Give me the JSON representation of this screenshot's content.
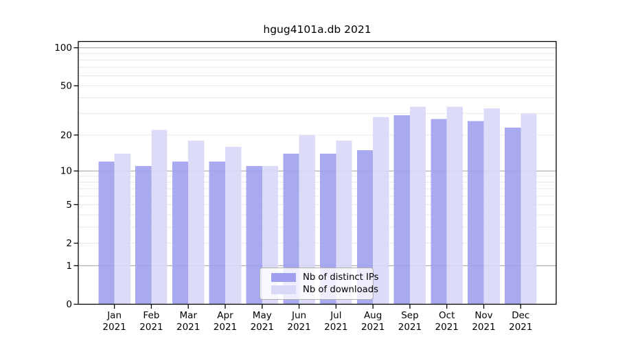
{
  "chart_data": {
    "type": "bar",
    "title": "hgug4101a.db 2021",
    "categories": [
      "Jan",
      "Feb",
      "Mar",
      "Apr",
      "May",
      "Jun",
      "Jul",
      "Aug",
      "Sep",
      "Oct",
      "Nov",
      "Dec"
    ],
    "category_year": "2021",
    "series": [
      {
        "name": "Nb of distinct IPs",
        "color": "#a0a0ee",
        "values": [
          12,
          11,
          12,
          12,
          11,
          14,
          14,
          15,
          29,
          27,
          26,
          23
        ]
      },
      {
        "name": "Nb of downloads",
        "color": "#d8d8f7",
        "values": [
          14,
          22,
          18,
          16,
          11,
          20,
          18,
          28,
          34,
          34,
          33,
          30
        ]
      }
    ],
    "y_axis": {
      "scale": "log1p",
      "tick_values": [
        0,
        1,
        2,
        5,
        10,
        20,
        50,
        100
      ],
      "major_gridlines": [
        1,
        10,
        100
      ],
      "minor_gridlines": [
        2,
        3,
        4,
        5,
        6,
        7,
        8,
        9,
        20,
        30,
        40,
        50,
        60,
        70,
        80,
        90
      ],
      "ylim": [
        0,
        112
      ],
      "major_gridline_color": "#b0b0b0",
      "minor_gridline_color": "#e9e9e9"
    },
    "x_axis": {
      "tick_label_line2": "2021"
    },
    "legend": {
      "position": "inside-bottom-center"
    },
    "axis_color": "#000000",
    "background_color": "#ffffff"
  }
}
